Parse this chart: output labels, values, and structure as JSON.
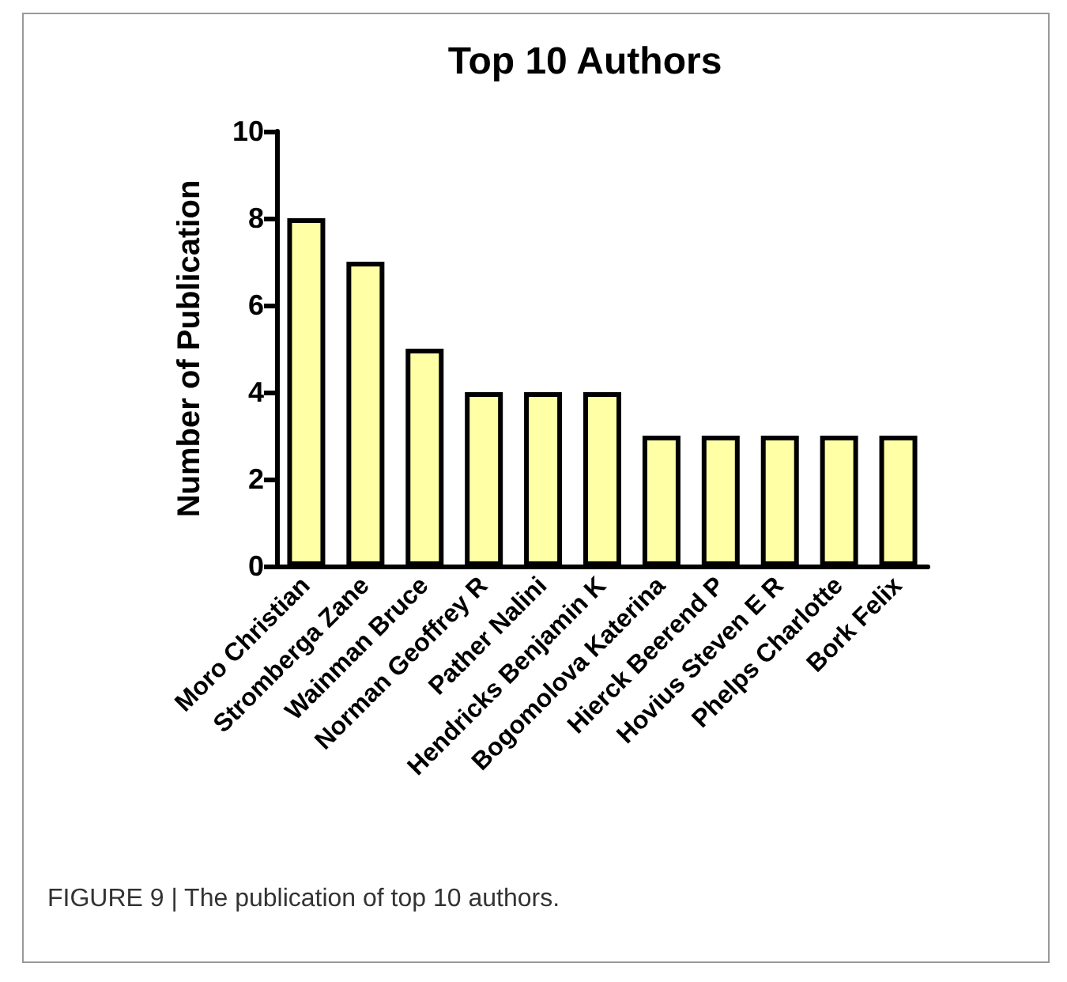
{
  "chart_data": {
    "type": "bar",
    "title": "Top 10 Authors",
    "ylabel": "Number of Publication",
    "categories": [
      "Moro Christian",
      "Stromberga Zane",
      "Wainman Bruce",
      "Norman Geoffrey R",
      "Pather Nalini",
      "Hendricks Benjamin K",
      "Bogomolova Katerina",
      "Hierck Beerend P",
      "Hovius Steven E R",
      "Phelps Charlotte",
      "Bork Felix"
    ],
    "values": [
      8,
      7,
      5,
      4,
      4,
      4,
      3,
      3,
      3,
      3,
      3
    ],
    "color": "#ffffa6",
    "ylim": [
      0,
      10
    ],
    "yticks": [
      0,
      2,
      4,
      6,
      8,
      10
    ],
    "grid": false,
    "annotations": [
      "FIGURE 9 | The publication of top 10 authors."
    ]
  }
}
